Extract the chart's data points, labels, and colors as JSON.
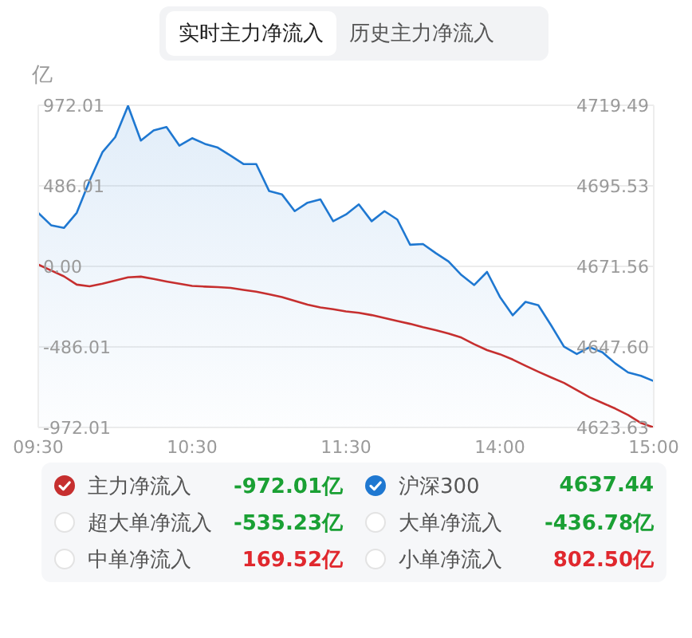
{
  "chart_data": {
    "type": "line",
    "ylabel": "亿",
    "annotations": [
      "实时主力净流入",
      "历史主力净流入",
      "-972.01亿",
      "4637.44",
      "超大单净流入",
      "-535.23亿",
      "大单净流入",
      "-436.78亿",
      "中单净流入",
      "169.52亿",
      "小单净流入",
      "802.50亿"
    ],
    "categories": [
      "09:30",
      null,
      null,
      null,
      null,
      null,
      null,
      null,
      null,
      null,
      null,
      null,
      "10:30",
      null,
      null,
      null,
      null,
      null,
      null,
      null,
      null,
      null,
      null,
      null,
      "11:30",
      null,
      null,
      null,
      null,
      null,
      null,
      null,
      null,
      null,
      null,
      null,
      "14:00",
      null,
      null,
      null,
      null,
      null,
      null,
      null,
      null,
      null,
      null,
      null,
      "15:00"
    ],
    "ylim": [
      -972.01,
      972.01
    ],
    "yticks": [
      -972.01,
      -486.01,
      {
        "value": 0,
        "label": "0.00"
      },
      486.01,
      972.01
    ],
    "y2lim": [
      4623.63,
      4719.49
    ],
    "y2ticks": [
      4623.63,
      {
        "value": 4647.6,
        "label": "4647.60"
      },
      4671.56,
      4695.53,
      4719.49
    ],
    "grid": "y",
    "legend": "bottom",
    "series": [
      {
        "name": "主力净流入",
        "color": "#c62f2f",
        "values": [
          11,
          -25,
          -60,
          -110,
          -120,
          -105,
          -85,
          -66,
          -62,
          -76,
          -91,
          -105,
          -118,
          -122,
          -125,
          -130,
          -142,
          -153,
          -168,
          -185,
          -208,
          -231,
          -248,
          -259,
          -272,
          -280,
          -294,
          -312,
          -330,
          -347,
          -367,
          -385,
          -405,
          -430,
          -470,
          -505,
          -530,
          -562,
          -600,
          -636,
          -670,
          -703,
          -747,
          -790,
          -824,
          -858,
          -897,
          -945,
          -972.01
        ]
      },
      {
        "name": "沪深300",
        "type": "area",
        "axis": "y2",
        "color": "#1f78d1",
        "values": [
          4687.5,
          4683.8,
          4683,
          4687.5,
          4697,
          4705.5,
          4710,
          4719.3,
          4709,
          4712,
          4713,
          4707.5,
          4709.7,
          4708,
          4706.9,
          4704.5,
          4702,
          4702,
          4694,
          4693,
          4688,
          4690.5,
          4691.5,
          4685,
          4687,
          4690,
          4685,
          4688,
          4685.5,
          4678,
          4678.2,
          4675.5,
          4673,
          4669,
          4666,
          4669.9,
          4662.5,
          4657,
          4661,
          4660,
          4654,
          4647.7,
          4645.5,
          4647.5,
          4646,
          4642.7,
          4640,
          4639,
          4637.44
        ]
      }
    ]
  }
}
